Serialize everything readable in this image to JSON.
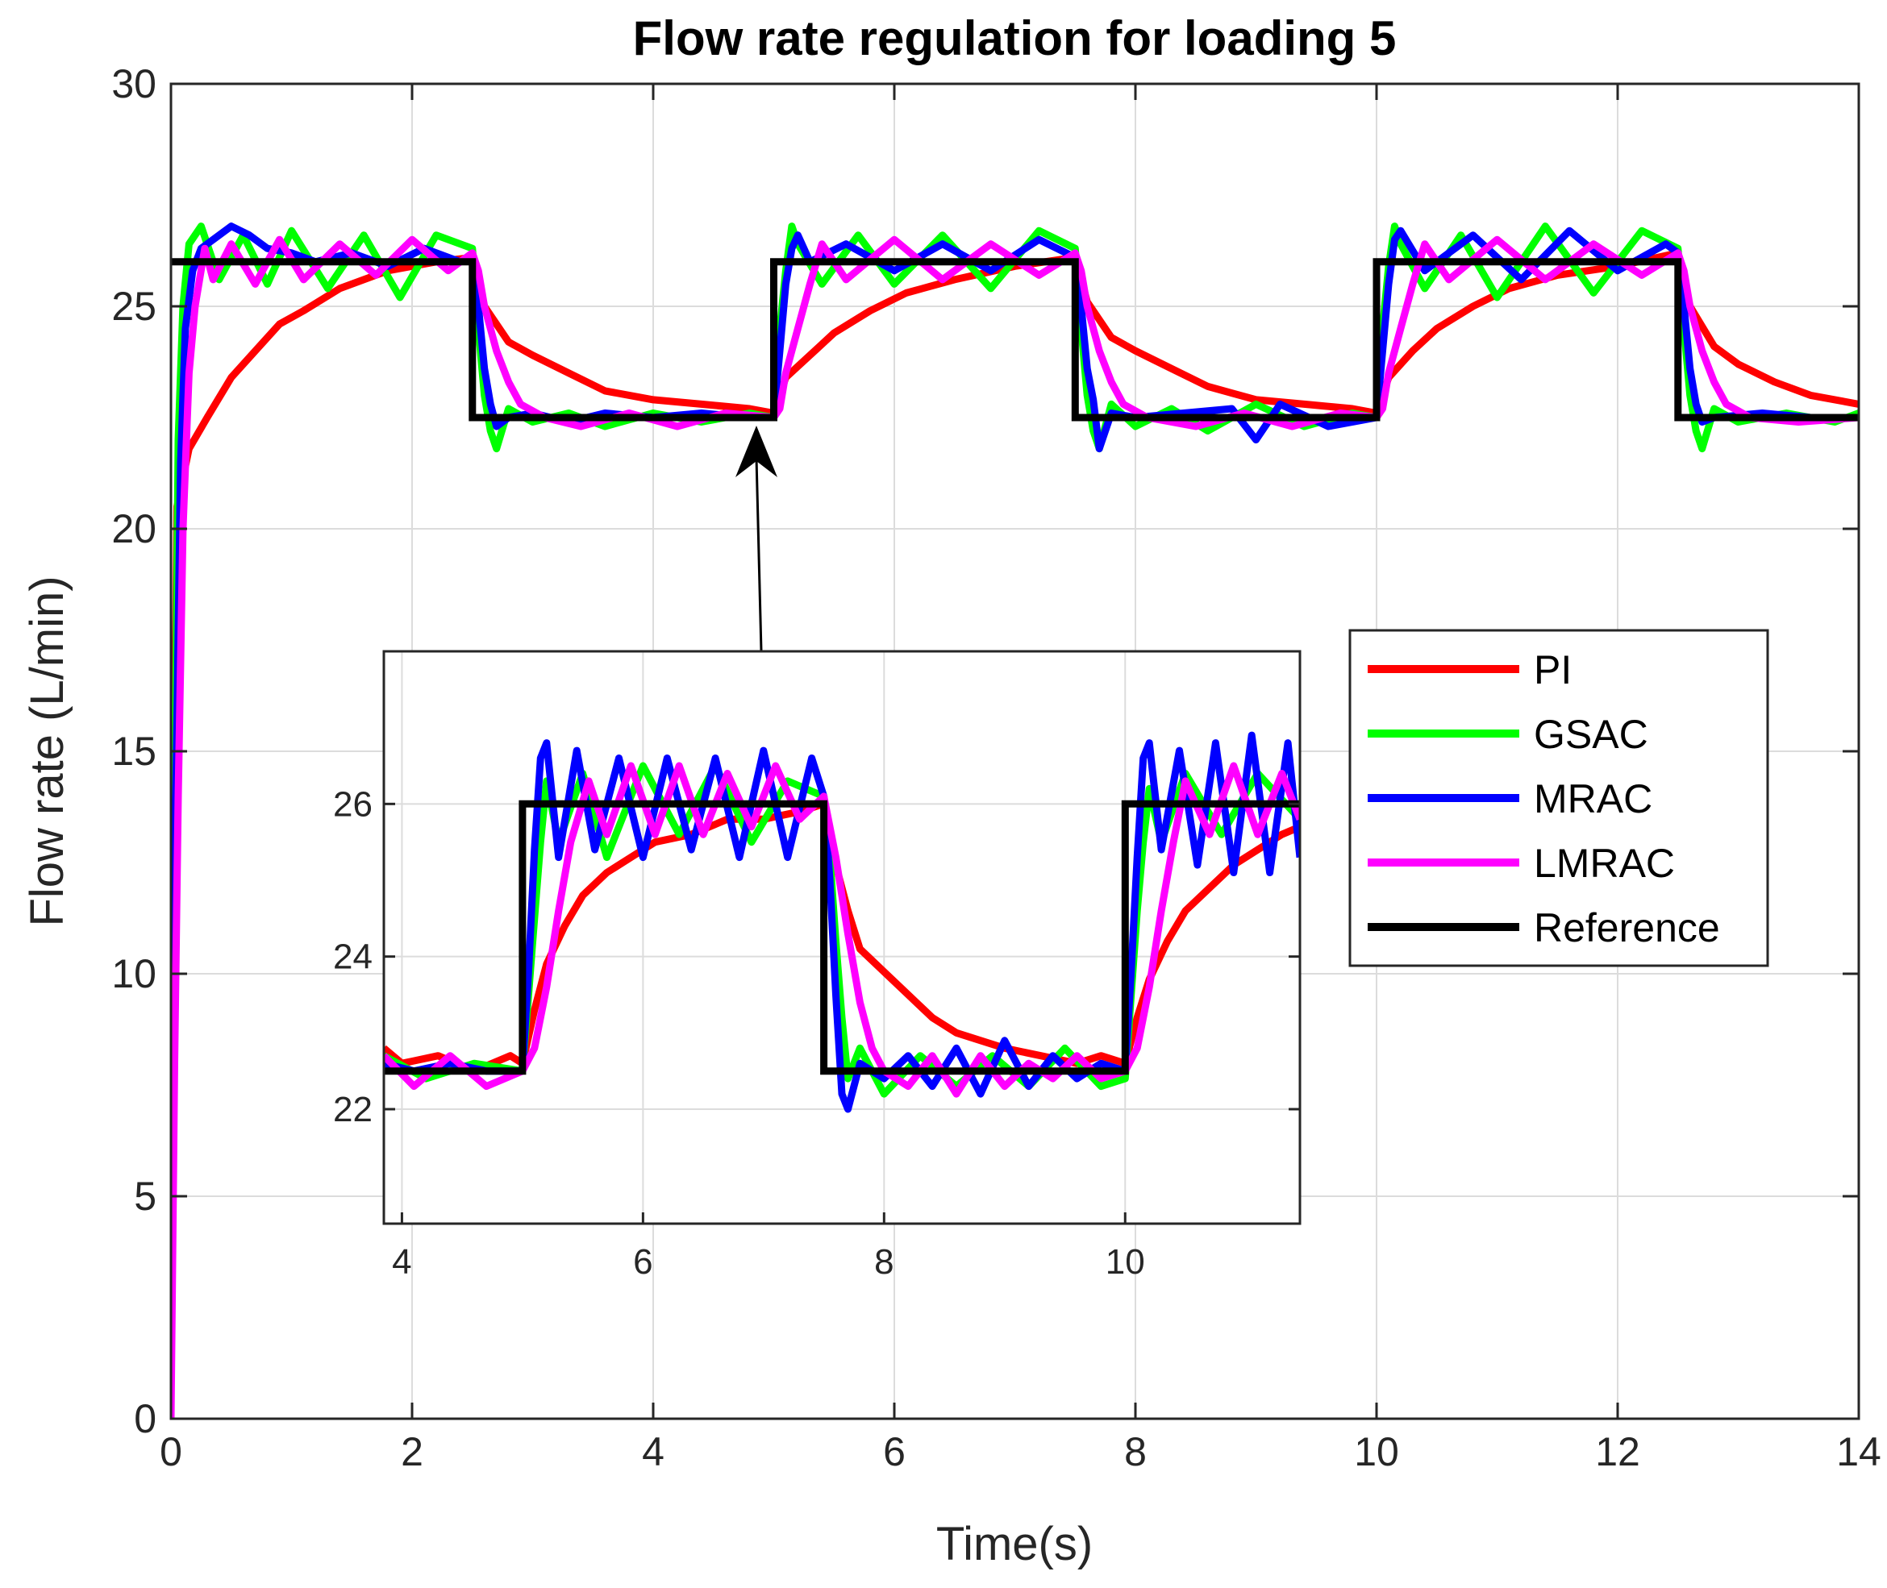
{
  "chart_data": {
    "type": "line",
    "title": "Flow rate regulation for loading 5",
    "xlabel": "Time(s)",
    "ylabel": "Flow rate (L/min)",
    "xlim": [
      0,
      14
    ],
    "ylim": [
      0,
      30
    ],
    "xticks": [
      0,
      2,
      4,
      6,
      8,
      10,
      12,
      14
    ],
    "yticks": [
      0,
      5,
      10,
      15,
      20,
      25,
      30
    ],
    "grid": true,
    "legend_position": "center-right",
    "reference": {
      "name": "Reference",
      "color": "#000000",
      "x": [
        0,
        2.5,
        2.5,
        5,
        5,
        7.5,
        7.5,
        10,
        10,
        12.5,
        12.5,
        14
      ],
      "y": [
        26,
        26,
        22.5,
        22.5,
        26,
        26,
        22.5,
        22.5,
        26,
        26,
        22.5,
        22.5
      ]
    },
    "series": [
      {
        "name": "PI",
        "color": "#ff0000",
        "x": [
          0,
          0.05,
          0.15,
          0.3,
          0.5,
          0.7,
          0.9,
          1.1,
          1.4,
          1.8,
          2.2,
          2.5,
          2.6,
          2.8,
          3.0,
          3.3,
          3.6,
          4.0,
          4.4,
          4.8,
          5.0,
          5.1,
          5.3,
          5.5,
          5.8,
          6.1,
          6.5,
          7.0,
          7.5,
          7.6,
          7.8,
          8.0,
          8.3,
          8.6,
          9.0,
          9.4,
          9.8,
          10.0,
          10.1,
          10.3,
          10.5,
          10.8,
          11.1,
          11.5,
          12.0,
          12.5,
          12.6,
          12.8,
          13.0,
          13.3,
          13.6,
          14.0
        ],
        "y": [
          5.5,
          20.5,
          21.8,
          22.5,
          23.4,
          24.0,
          24.6,
          24.9,
          25.4,
          25.8,
          26.0,
          26.1,
          25.0,
          24.2,
          23.9,
          23.5,
          23.1,
          22.9,
          22.8,
          22.7,
          22.6,
          23.4,
          23.9,
          24.4,
          24.9,
          25.3,
          25.6,
          25.9,
          26.1,
          25.1,
          24.3,
          24.0,
          23.6,
          23.2,
          22.9,
          22.8,
          22.7,
          22.6,
          23.4,
          24.0,
          24.5,
          25.0,
          25.4,
          25.7,
          25.9,
          26.2,
          25.0,
          24.1,
          23.7,
          23.3,
          23.0,
          22.8
        ]
      },
      {
        "name": "GSAC",
        "color": "#00ff00",
        "x": [
          0,
          0.02,
          0.06,
          0.1,
          0.15,
          0.25,
          0.4,
          0.6,
          0.8,
          1.0,
          1.3,
          1.6,
          1.9,
          2.2,
          2.5,
          2.55,
          2.6,
          2.65,
          2.7,
          2.8,
          3.0,
          3.3,
          3.6,
          4.0,
          4.4,
          4.8,
          5.0,
          5.05,
          5.1,
          5.15,
          5.2,
          5.4,
          5.7,
          6.0,
          6.4,
          6.8,
          7.2,
          7.5,
          7.55,
          7.6,
          7.65,
          7.7,
          7.8,
          8.0,
          8.3,
          8.6,
          9.0,
          9.4,
          9.8,
          10.0,
          10.05,
          10.1,
          10.15,
          10.2,
          10.4,
          10.7,
          11.0,
          11.4,
          11.8,
          12.2,
          12.5,
          12.55,
          12.6,
          12.65,
          12.7,
          12.8,
          13.0,
          13.4,
          13.8,
          14.0
        ],
        "y": [
          2.0,
          10.0,
          22.0,
          25.0,
          26.4,
          26.8,
          25.6,
          26.6,
          25.5,
          26.7,
          25.4,
          26.6,
          25.2,
          26.6,
          26.3,
          24.5,
          23.0,
          22.2,
          21.8,
          22.7,
          22.4,
          22.6,
          22.3,
          22.6,
          22.4,
          22.6,
          22.5,
          24.5,
          25.8,
          26.8,
          26.4,
          25.5,
          26.6,
          25.5,
          26.6,
          25.4,
          26.7,
          26.3,
          24.5,
          23.0,
          22.2,
          21.8,
          22.8,
          22.3,
          22.7,
          22.2,
          22.8,
          22.3,
          22.6,
          22.5,
          24.5,
          25.9,
          26.8,
          26.4,
          25.4,
          26.6,
          25.2,
          26.8,
          25.3,
          26.7,
          26.3,
          24.5,
          23.0,
          22.2,
          21.8,
          22.7,
          22.4,
          22.6,
          22.4,
          22.6
        ]
      },
      {
        "name": "MRAC",
        "color": "#0000ff",
        "x": [
          0,
          0.03,
          0.08,
          0.12,
          0.18,
          0.25,
          0.35,
          0.5,
          0.65,
          0.8,
          1.0,
          1.2,
          1.5,
          1.8,
          2.1,
          2.4,
          2.5,
          2.55,
          2.6,
          2.65,
          2.7,
          2.8,
          3.0,
          3.3,
          3.6,
          4.0,
          4.4,
          4.8,
          5.0,
          5.05,
          5.1,
          5.15,
          5.2,
          5.3,
          5.6,
          6.0,
          6.4,
          6.8,
          7.2,
          7.5,
          7.55,
          7.6,
          7.65,
          7.7,
          7.8,
          8.0,
          8.4,
          8.8,
          9.0,
          9.2,
          9.6,
          10.0,
          10.05,
          10.1,
          10.15,
          10.2,
          10.4,
          10.8,
          11.2,
          11.6,
          12.0,
          12.4,
          12.5,
          12.55,
          12.6,
          12.65,
          12.7,
          12.8,
          13.2,
          13.6,
          14.0
        ],
        "y": [
          2.5,
          12.0,
          21.5,
          24.5,
          25.8,
          26.3,
          26.5,
          26.8,
          26.6,
          26.3,
          26.2,
          26.0,
          26.2,
          25.9,
          26.3,
          26.0,
          26.1,
          25.0,
          23.6,
          22.8,
          22.3,
          22.5,
          22.6,
          22.4,
          22.6,
          22.5,
          22.6,
          22.5,
          22.5,
          24.0,
          25.5,
          26.3,
          26.6,
          26.0,
          26.4,
          25.8,
          26.4,
          25.8,
          26.5,
          26.1,
          25.0,
          23.6,
          22.9,
          21.8,
          22.6,
          22.5,
          22.6,
          22.7,
          22.0,
          22.8,
          22.3,
          22.5,
          24.0,
          25.5,
          26.5,
          26.7,
          25.8,
          26.6,
          25.6,
          26.7,
          25.8,
          26.4,
          26.2,
          25.0,
          23.6,
          22.8,
          22.4,
          22.5,
          22.6,
          22.5,
          22.5
        ]
      },
      {
        "name": "LMRAC",
        "color": "#ff00ff",
        "x": [
          0,
          0.03,
          0.06,
          0.1,
          0.15,
          0.2,
          0.28,
          0.35,
          0.5,
          0.7,
          0.9,
          1.1,
          1.4,
          1.7,
          2.0,
          2.3,
          2.5,
          2.55,
          2.6,
          2.7,
          2.8,
          2.9,
          3.1,
          3.4,
          3.8,
          4.2,
          4.6,
          5.0,
          5.05,
          5.1,
          5.2,
          5.3,
          5.4,
          5.6,
          6.0,
          6.4,
          6.8,
          7.2,
          7.5,
          7.55,
          7.6,
          7.7,
          7.8,
          7.9,
          8.1,
          8.5,
          8.9,
          9.3,
          9.7,
          10.0,
          10.05,
          10.1,
          10.2,
          10.3,
          10.4,
          10.6,
          11.0,
          11.4,
          11.8,
          12.2,
          12.5,
          12.55,
          12.6,
          12.7,
          12.8,
          12.9,
          13.1,
          13.5,
          14.0
        ],
        "y": [
          0,
          8.0,
          14.0,
          20.0,
          23.5,
          25.0,
          26.3,
          25.6,
          26.4,
          25.5,
          26.5,
          25.6,
          26.4,
          25.7,
          26.5,
          25.8,
          26.2,
          25.8,
          25.0,
          24.0,
          23.3,
          22.8,
          22.5,
          22.3,
          22.6,
          22.3,
          22.6,
          22.5,
          22.7,
          23.5,
          24.5,
          25.5,
          26.4,
          25.6,
          26.5,
          25.6,
          26.4,
          25.7,
          26.2,
          25.8,
          25.0,
          24.0,
          23.3,
          22.8,
          22.5,
          22.3,
          22.6,
          22.3,
          22.6,
          22.5,
          22.7,
          23.5,
          24.5,
          25.5,
          26.4,
          25.6,
          26.5,
          25.6,
          26.4,
          25.7,
          26.2,
          25.8,
          25.0,
          24.0,
          23.3,
          22.8,
          22.5,
          22.4,
          22.5
        ]
      }
    ],
    "inset": {
      "xlim": [
        3.85,
        11.45
      ],
      "ylim": [
        20.5,
        28
      ],
      "xticks": [
        4,
        6,
        8,
        10
      ],
      "yticks": [
        22,
        24,
        26
      ],
      "ref_x": [
        3.85,
        5,
        5,
        7.5,
        7.5,
        10,
        10,
        11.45
      ],
      "ref_y": [
        22.5,
        22.5,
        26,
        26,
        22.5,
        22.5,
        26,
        26
      ],
      "series": [
        {
          "name": "PI",
          "x": [
            3.85,
            4.0,
            4.3,
            4.6,
            4.9,
            5.0,
            5.1,
            5.2,
            5.35,
            5.5,
            5.7,
            5.9,
            6.1,
            6.4,
            6.7,
            7.0,
            7.3,
            7.5,
            7.6,
            7.7,
            7.8,
            8.0,
            8.2,
            8.4,
            8.6,
            8.8,
            9.0,
            9.3,
            9.6,
            9.8,
            10.0,
            10.1,
            10.2,
            10.35,
            10.5,
            10.7,
            10.9,
            11.1,
            11.3,
            11.45
          ],
          "y": [
            22.8,
            22.6,
            22.7,
            22.5,
            22.7,
            22.6,
            23.3,
            23.9,
            24.4,
            24.8,
            25.1,
            25.3,
            25.5,
            25.6,
            25.8,
            25.8,
            25.9,
            26.0,
            25.2,
            24.6,
            24.1,
            23.8,
            23.5,
            23.2,
            23.0,
            22.9,
            22.8,
            22.7,
            22.6,
            22.7,
            22.6,
            23.2,
            23.7,
            24.2,
            24.6,
            24.9,
            25.2,
            25.4,
            25.6,
            25.7
          ]
        },
        {
          "name": "GSAC",
          "x": [
            3.85,
            4.2,
            4.6,
            5.0,
            5.05,
            5.1,
            5.15,
            5.2,
            5.3,
            5.5,
            5.7,
            6.0,
            6.3,
            6.6,
            6.9,
            7.2,
            7.5,
            7.55,
            7.6,
            7.65,
            7.7,
            7.8,
            8.0,
            8.3,
            8.6,
            8.9,
            9.2,
            9.5,
            9.8,
            10.0,
            10.05,
            10.1,
            10.15,
            10.2,
            10.3,
            10.5,
            10.8,
            11.1,
            11.45
          ],
          "y": [
            22.7,
            22.4,
            22.6,
            22.5,
            23.5,
            24.5,
            25.5,
            26.3,
            25.5,
            26.4,
            25.3,
            26.5,
            25.6,
            26.5,
            25.5,
            26.3,
            26.1,
            25.3,
            24.2,
            23.2,
            22.4,
            22.8,
            22.2,
            22.7,
            22.3,
            22.7,
            22.3,
            22.8,
            22.3,
            22.4,
            23.5,
            24.6,
            25.5,
            26.2,
            25.5,
            26.4,
            25.6,
            26.4,
            25.8
          ]
        },
        {
          "name": "MRAC",
          "x": [
            3.85,
            4.1,
            4.4,
            4.7,
            5.0,
            5.05,
            5.1,
            5.15,
            5.2,
            5.3,
            5.45,
            5.6,
            5.8,
            6.0,
            6.2,
            6.4,
            6.6,
            6.8,
            7.0,
            7.2,
            7.4,
            7.5,
            7.55,
            7.6,
            7.65,
            7.7,
            7.8,
            8.0,
            8.2,
            8.4,
            8.6,
            8.8,
            9.0,
            9.2,
            9.4,
            9.6,
            9.8,
            10.0,
            10.05,
            10.1,
            10.15,
            10.2,
            10.3,
            10.45,
            10.6,
            10.75,
            10.9,
            11.05,
            11.2,
            11.35,
            11.45
          ],
          "y": [
            22.6,
            22.5,
            22.6,
            22.5,
            22.5,
            23.8,
            25.4,
            26.6,
            26.8,
            25.3,
            26.7,
            25.4,
            26.6,
            25.3,
            26.6,
            25.4,
            26.6,
            25.3,
            26.7,
            25.3,
            26.6,
            26.1,
            25.0,
            23.5,
            22.2,
            22.0,
            22.6,
            22.4,
            22.7,
            22.3,
            22.8,
            22.2,
            22.9,
            22.3,
            22.7,
            22.4,
            22.6,
            22.5,
            23.8,
            25.3,
            26.6,
            26.8,
            25.4,
            26.7,
            25.2,
            26.8,
            25.1,
            26.9,
            25.1,
            26.8,
            25.3
          ]
        },
        {
          "name": "LMRAC",
          "x": [
            3.85,
            4.1,
            4.4,
            4.7,
            5.0,
            5.1,
            5.2,
            5.3,
            5.4,
            5.55,
            5.7,
            5.9,
            6.1,
            6.3,
            6.5,
            6.7,
            6.9,
            7.1,
            7.3,
            7.5,
            7.6,
            7.7,
            7.8,
            7.9,
            8.0,
            8.2,
            8.4,
            8.6,
            8.8,
            9.0,
            9.2,
            9.4,
            9.6,
            9.8,
            10.0,
            10.1,
            10.2,
            10.3,
            10.4,
            10.5,
            10.7,
            10.9,
            11.1,
            11.3,
            11.45
          ],
          "y": [
            22.7,
            22.3,
            22.7,
            22.3,
            22.5,
            22.8,
            23.6,
            24.6,
            25.5,
            26.3,
            25.6,
            26.5,
            25.6,
            26.5,
            25.6,
            26.4,
            25.7,
            26.5,
            25.8,
            26.1,
            25.3,
            24.3,
            23.4,
            22.8,
            22.5,
            22.3,
            22.7,
            22.2,
            22.7,
            22.3,
            22.6,
            22.4,
            22.7,
            22.4,
            22.5,
            22.8,
            23.6,
            24.6,
            25.5,
            26.3,
            25.6,
            26.5,
            25.6,
            26.4,
            25.8
          ]
        }
      ]
    }
  }
}
